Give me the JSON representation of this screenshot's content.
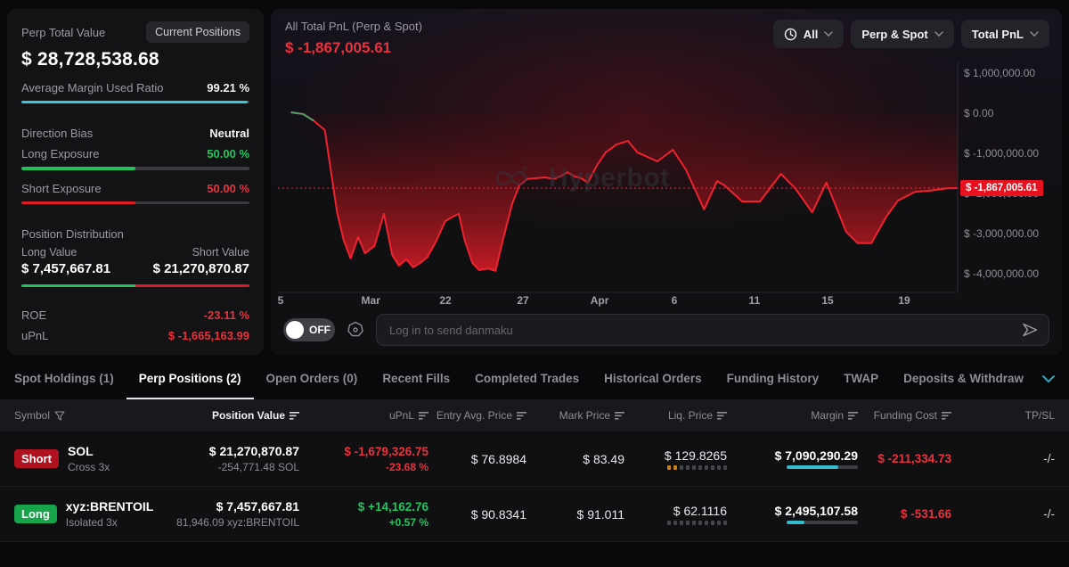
{
  "left_panel": {
    "title": "Perp Total Value",
    "current_positions_btn": "Current Positions",
    "total_value": "$ 28,728,538.68",
    "avg_margin_label": "Average Margin Used Ratio",
    "avg_margin_value": "99.21 %",
    "avg_margin_pct": 99.21,
    "direction_bias_label": "Direction Bias",
    "direction_bias_value": "Neutral",
    "long_exposure_label": "Long Exposure",
    "long_exposure_value": "50.00 %",
    "short_exposure_label": "Short Exposure",
    "short_exposure_value": "50.00 %",
    "position_distribution_label": "Position Distribution",
    "long_value_label": "Long Value",
    "short_value_label": "Short Value",
    "long_value": "$ 7,457,667.81",
    "short_value": "$ 21,270,870.87",
    "roe_label": "ROE",
    "roe_value": "-23.11 %",
    "upnl_label": "uPnL",
    "upnl_value": "$ -1,665,163.99"
  },
  "chart_panel": {
    "title": "All Total PnL (Perp & Spot)",
    "value": "$ -1,867,005.61",
    "filters": {
      "time": "All",
      "scope": "Perp & Spot",
      "metric": "Total PnL"
    },
    "watermark": "Hyperbot",
    "danmaku": {
      "toggle": "OFF",
      "placeholder": "Log in to send danmaku"
    }
  },
  "chart_data": {
    "type": "area",
    "title": "All Total PnL (Perp & Spot)",
    "current_value": -1867005.61,
    "current_value_label": "$ -1,867,005.61",
    "line_color": "#f0222e",
    "start_segment_color": "#4f9e68",
    "ylim": [
      -4580000,
      1310000
    ],
    "y_ticks": [
      "$ 1,000,000.00",
      "$ 0.00",
      "$ -1,000,000.00",
      "$ -2,000,000.00",
      "$ -3,000,000.00",
      "$ -4,000,000.00"
    ],
    "y_tick_values": [
      1000000,
      0,
      -1000000,
      -2000000,
      -3000000,
      -4000000
    ],
    "x_ticks": [
      [
        "5",
        0.003
      ],
      [
        "Mar",
        0.132
      ],
      [
        "22",
        0.244
      ],
      [
        "27",
        0.358
      ],
      [
        "Apr",
        0.469
      ],
      [
        "6",
        0.582
      ],
      [
        "11",
        0.699
      ],
      [
        "15",
        0.806
      ],
      [
        "19",
        0.919
      ]
    ],
    "points": [
      [
        0.02,
        20000
      ],
      [
        0.037,
        -20000
      ],
      [
        0.052,
        -180000
      ],
      [
        0.069,
        -420000
      ],
      [
        0.087,
        -2470000
      ],
      [
        0.097,
        -3180000
      ],
      [
        0.107,
        -3620000
      ],
      [
        0.118,
        -3090000
      ],
      [
        0.128,
        -3490000
      ],
      [
        0.142,
        -3310000
      ],
      [
        0.156,
        -2510000
      ],
      [
        0.168,
        -3530000
      ],
      [
        0.178,
        -3800000
      ],
      [
        0.189,
        -3640000
      ],
      [
        0.199,
        -3840000
      ],
      [
        0.21,
        -3730000
      ],
      [
        0.22,
        -3580000
      ],
      [
        0.233,
        -3180000
      ],
      [
        0.246,
        -2690000
      ],
      [
        0.257,
        -2580000
      ],
      [
        0.266,
        -2510000
      ],
      [
        0.275,
        -3180000
      ],
      [
        0.286,
        -3730000
      ],
      [
        0.296,
        -3910000
      ],
      [
        0.309,
        -3870000
      ],
      [
        0.32,
        -3930000
      ],
      [
        0.332,
        -3090000
      ],
      [
        0.345,
        -2240000
      ],
      [
        0.355,
        -1800000
      ],
      [
        0.367,
        -1640000
      ],
      [
        0.38,
        -1620000
      ],
      [
        0.393,
        -1600000
      ],
      [
        0.406,
        -1640000
      ],
      [
        0.417,
        -1560000
      ],
      [
        0.426,
        -1470000
      ],
      [
        0.437,
        -1580000
      ],
      [
        0.446,
        -1620000
      ],
      [
        0.456,
        -1730000
      ],
      [
        0.469,
        -1310000
      ],
      [
        0.482,
        -980000
      ],
      [
        0.498,
        -780000
      ],
      [
        0.515,
        -690000
      ],
      [
        0.529,
        -980000
      ],
      [
        0.544,
        -1090000
      ],
      [
        0.558,
        -1200000
      ],
      [
        0.581,
        -910000
      ],
      [
        0.6,
        -1400000
      ],
      [
        0.627,
        -2400000
      ],
      [
        0.646,
        -1690000
      ],
      [
        0.657,
        -1800000
      ],
      [
        0.683,
        -2200000
      ],
      [
        0.709,
        -2200000
      ],
      [
        0.74,
        -1510000
      ],
      [
        0.761,
        -1870000
      ],
      [
        0.786,
        -2470000
      ],
      [
        0.807,
        -1730000
      ],
      [
        0.836,
        -2960000
      ],
      [
        0.853,
        -3240000
      ],
      [
        0.873,
        -3240000
      ],
      [
        0.895,
        -2580000
      ],
      [
        0.912,
        -2180000
      ],
      [
        0.937,
        -1960000
      ],
      [
        0.961,
        -1930000
      ],
      [
        0.984,
        -1870000
      ],
      [
        1.0,
        -1867005
      ]
    ]
  },
  "tabs": [
    {
      "label": "Spot Holdings (1)",
      "active": false
    },
    {
      "label": "Perp Positions (2)",
      "active": true
    },
    {
      "label": "Open Orders (0)",
      "active": false
    },
    {
      "label": "Recent Fills",
      "active": false
    },
    {
      "label": "Completed Trades",
      "active": false
    },
    {
      "label": "Historical Orders",
      "active": false
    },
    {
      "label": "Funding History",
      "active": false
    },
    {
      "label": "TWAP",
      "active": false
    },
    {
      "label": "Deposits & Withdraw",
      "active": false
    }
  ],
  "table": {
    "headers": [
      {
        "label": "Symbol"
      },
      {
        "label": "Position Value"
      },
      {
        "label": "uPnL"
      },
      {
        "label": "Entry Avg. Price"
      },
      {
        "label": "Mark Price"
      },
      {
        "label": "Liq. Price"
      },
      {
        "label": "Margin"
      },
      {
        "label": "Funding Cost"
      },
      {
        "label": "TP/SL"
      }
    ],
    "rows": [
      {
        "side": "Short",
        "symbol": "SOL",
        "leverage": "Cross 3x",
        "position_value": "$ 21,270,870.87",
        "position_size": "-254,771.48 SOL",
        "upnl": "$ -1,679,326.75",
        "upnl_pct": "-23.68 %",
        "upnl_positive": false,
        "entry": "$ 76.8984",
        "mark": "$ 83.49",
        "liq": "$ 129.8265",
        "liq_dots_lit": 2,
        "margin": "$ 7,090,290.29",
        "margin_pct": 72,
        "funding": "$ -211,334.73",
        "tpsl": "-/-"
      },
      {
        "side": "Long",
        "symbol": "xyz:BRENTOIL",
        "leverage": "Isolated 3x",
        "position_value": "$ 7,457,667.81",
        "position_size": "81,946.09 xyz:BRENTOIL",
        "upnl": "$ +14,162.76",
        "upnl_pct": "+0.57 %",
        "upnl_positive": true,
        "entry": "$ 90.8341",
        "mark": "$ 91.011",
        "liq": "$ 62.1116",
        "liq_dots_lit": 0,
        "margin": "$ 2,495,107.58",
        "margin_pct": 25,
        "funding": "$ -531.66",
        "tpsl": "-/-"
      }
    ]
  },
  "colors": {
    "accent_teal": "#3bc7d6",
    "green": "#1fc35c",
    "red": "#e8323c",
    "badge_red": "#b1121f",
    "badge_green": "#17a34a",
    "chart_red": "#f0222e"
  }
}
